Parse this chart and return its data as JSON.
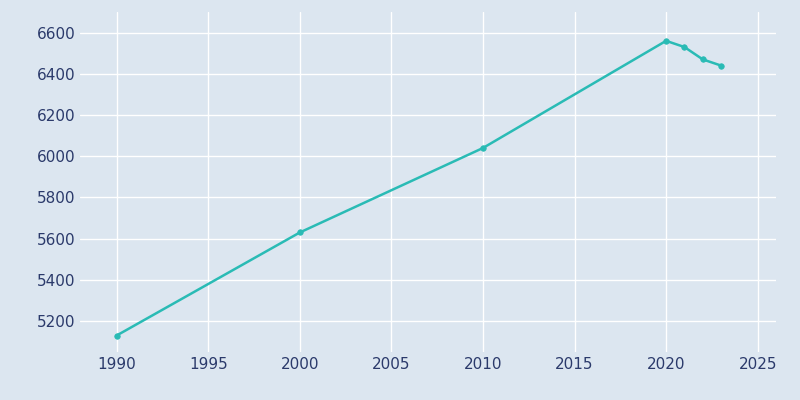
{
  "years": [
    1990,
    2000,
    2010,
    2020,
    2021,
    2022,
    2023
  ],
  "population": [
    5130,
    5630,
    6040,
    6560,
    6530,
    6470,
    6440
  ],
  "line_color": "#2abbb5",
  "marker_color": "#2abbb5",
  "background_color": "#dce6f0",
  "plot_bg_color": "#dce6f0",
  "grid_color": "#ffffff",
  "tick_color": "#2b3a6b",
  "xlim": [
    1988,
    2026
  ],
  "ylim": [
    5050,
    6700
  ],
  "xticks": [
    1990,
    1995,
    2000,
    2005,
    2010,
    2015,
    2020,
    2025
  ],
  "yticks": [
    5200,
    5400,
    5600,
    5800,
    6000,
    6200,
    6400,
    6600
  ],
  "linewidth": 1.8,
  "markersize": 4
}
